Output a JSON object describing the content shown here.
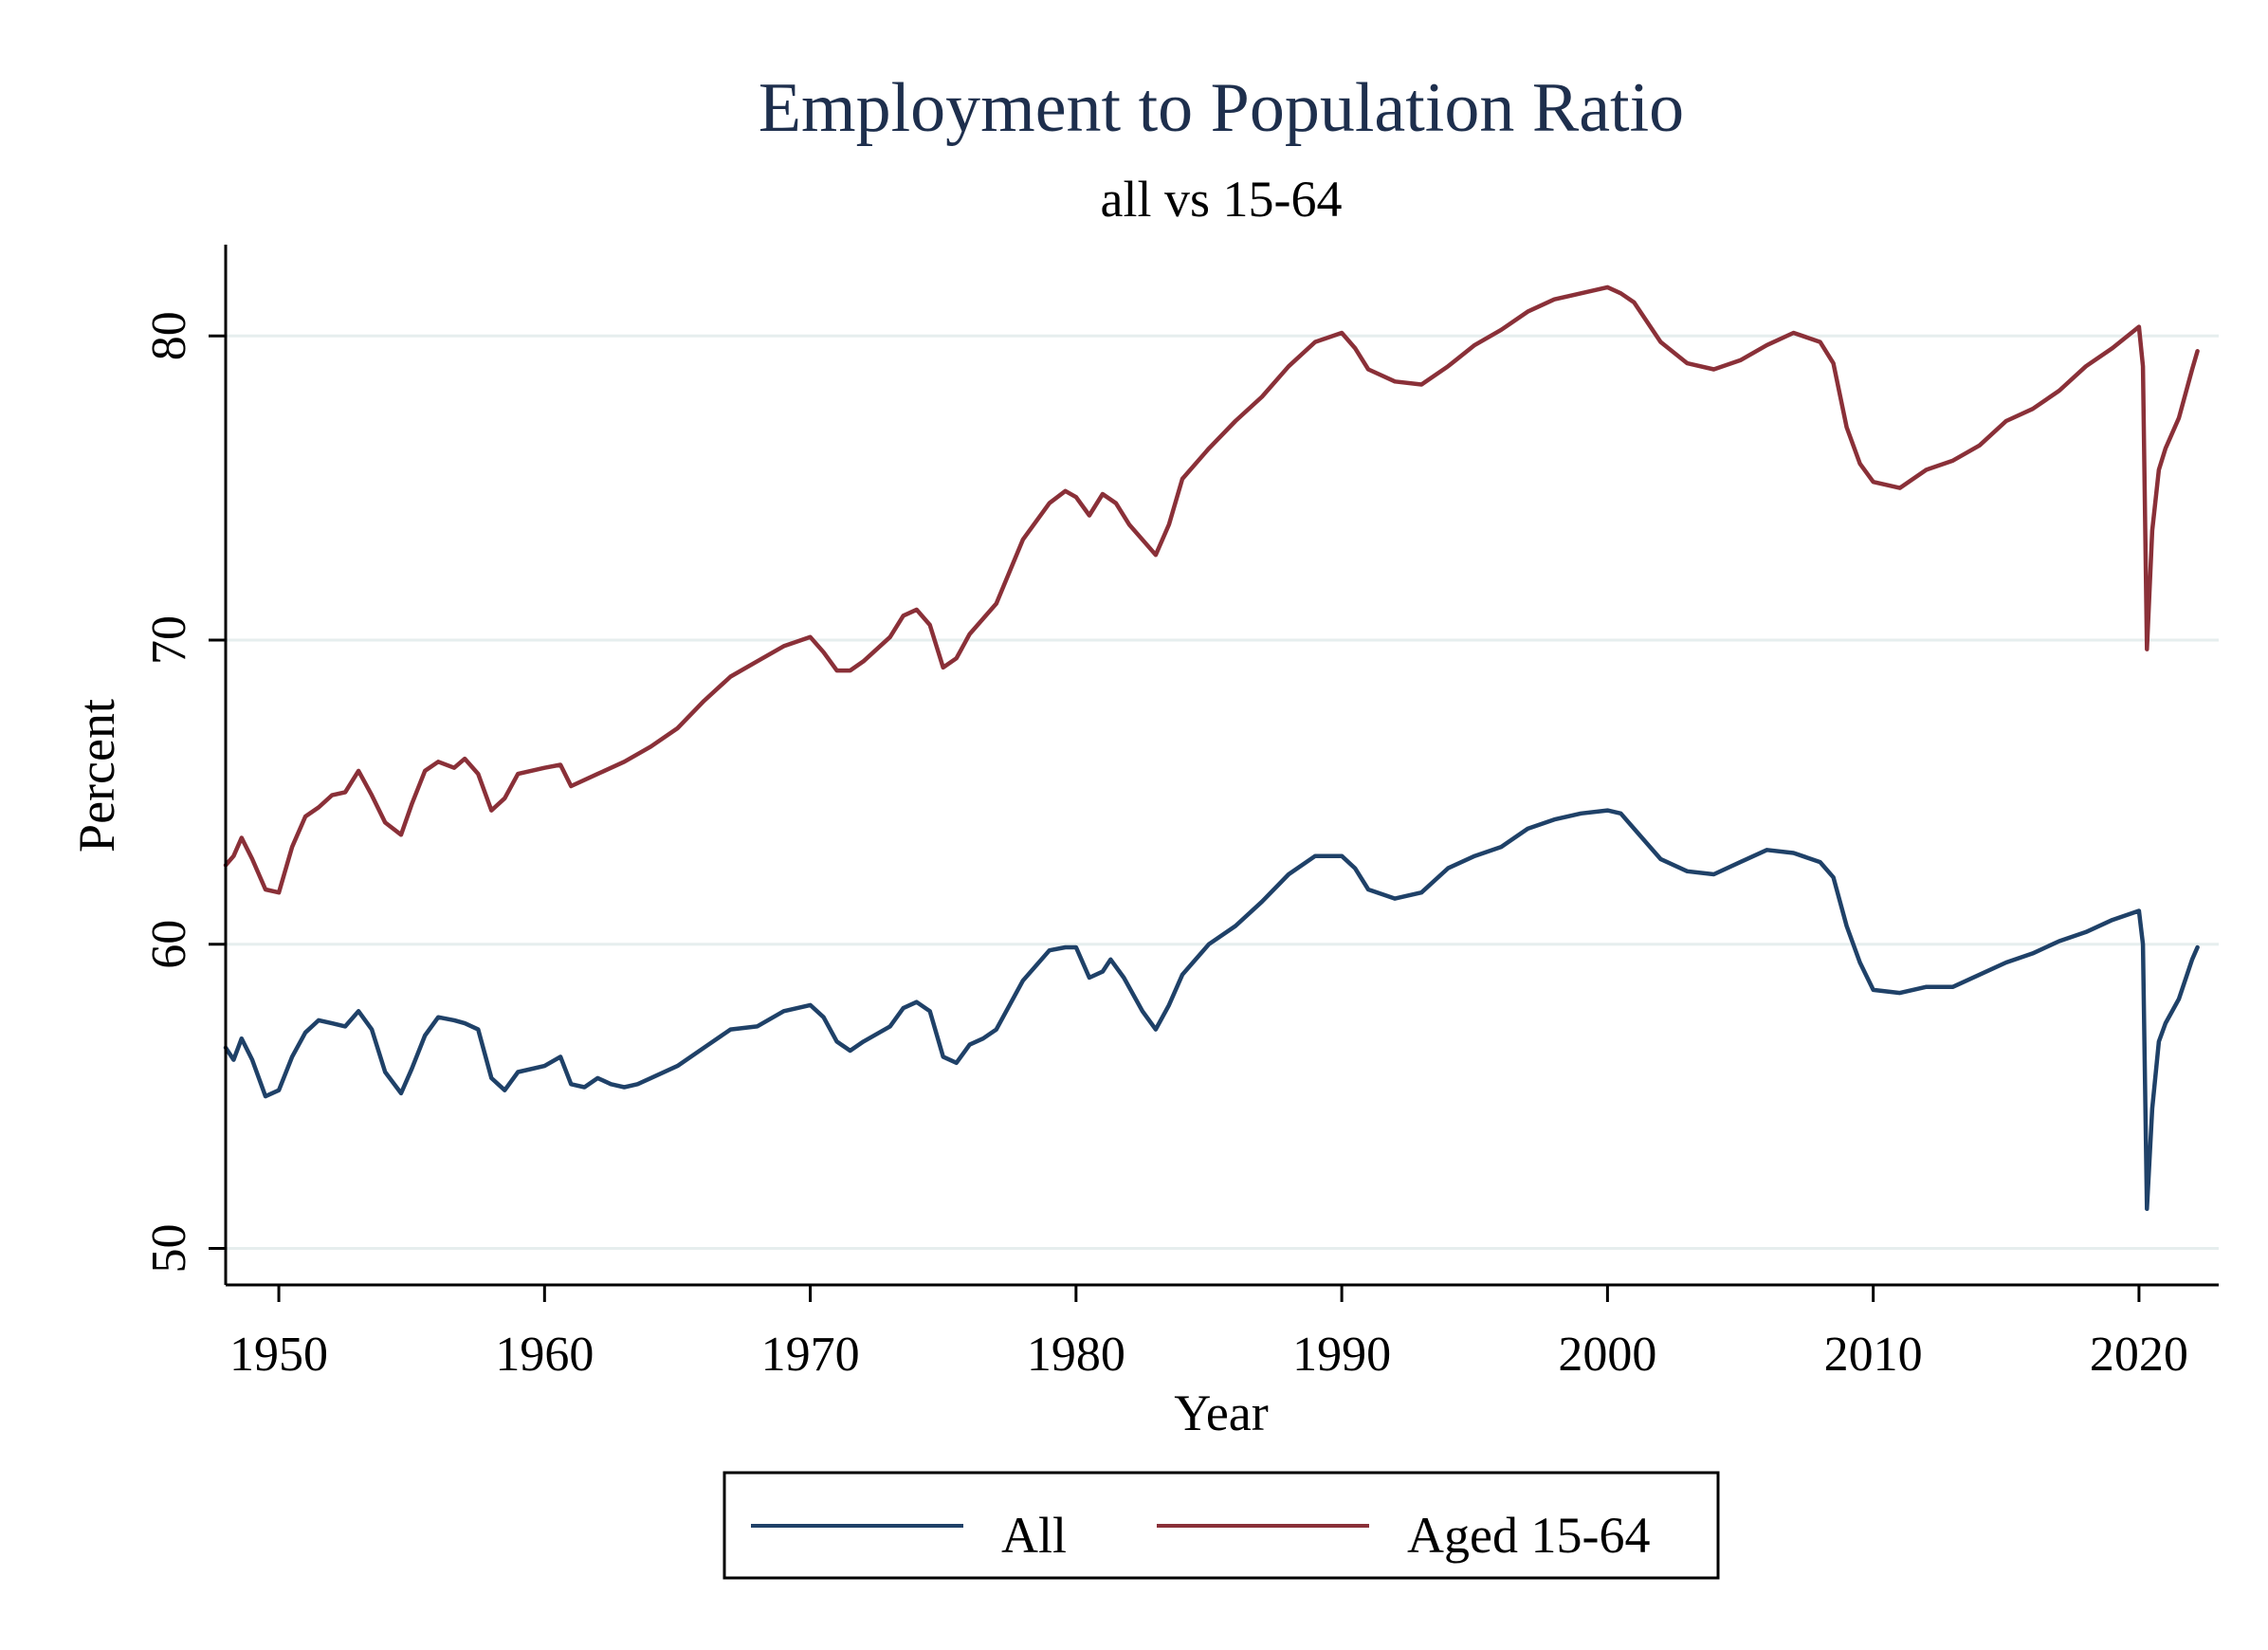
{
  "chart_data": {
    "type": "line",
    "title": "Employment to Population Ratio",
    "subtitle": "all vs 15-64",
    "xlabel": "Year",
    "ylabel": "Percent",
    "xlim": [
      1948,
      2023
    ],
    "ylim": [
      48.8,
      83.0
    ],
    "xticks": [
      1950,
      1960,
      1970,
      1980,
      1990,
      2000,
      2010,
      2020
    ],
    "yticks": [
      50,
      60,
      70,
      80
    ],
    "grid": true,
    "legend_position": "bottom",
    "series": [
      {
        "name": "All",
        "color": "#1f4168",
        "points": [
          [
            1948.0,
            56.6
          ],
          [
            1948.3,
            56.2
          ],
          [
            1948.6,
            56.9
          ],
          [
            1949.0,
            56.2
          ],
          [
            1949.5,
            55.0
          ],
          [
            1950.0,
            55.2
          ],
          [
            1950.5,
            56.3
          ],
          [
            1951.0,
            57.1
          ],
          [
            1951.5,
            57.5
          ],
          [
            1952.0,
            57.4
          ],
          [
            1952.5,
            57.3
          ],
          [
            1953.0,
            57.8
          ],
          [
            1953.5,
            57.2
          ],
          [
            1954.0,
            55.8
          ],
          [
            1954.6,
            55.1
          ],
          [
            1955.0,
            55.9
          ],
          [
            1955.5,
            57.0
          ],
          [
            1956.0,
            57.6
          ],
          [
            1956.6,
            57.5
          ],
          [
            1957.0,
            57.4
          ],
          [
            1957.5,
            57.2
          ],
          [
            1958.0,
            55.6
          ],
          [
            1958.5,
            55.2
          ],
          [
            1959.0,
            55.8
          ],
          [
            1960.0,
            56.0
          ],
          [
            1960.6,
            56.3
          ],
          [
            1961.0,
            55.4
          ],
          [
            1961.5,
            55.3
          ],
          [
            1962.0,
            55.6
          ],
          [
            1962.5,
            55.4
          ],
          [
            1963.0,
            55.3
          ],
          [
            1963.5,
            55.4
          ],
          [
            1964.0,
            55.6
          ],
          [
            1965.0,
            56.0
          ],
          [
            1966.0,
            56.6
          ],
          [
            1967.0,
            57.2
          ],
          [
            1968.0,
            57.3
          ],
          [
            1969.0,
            57.8
          ],
          [
            1970.0,
            58.0
          ],
          [
            1970.5,
            57.6
          ],
          [
            1971.0,
            56.8
          ],
          [
            1971.5,
            56.5
          ],
          [
            1972.0,
            56.8
          ],
          [
            1973.0,
            57.3
          ],
          [
            1973.5,
            57.9
          ],
          [
            1974.0,
            58.1
          ],
          [
            1974.5,
            57.8
          ],
          [
            1975.0,
            56.3
          ],
          [
            1975.5,
            56.1
          ],
          [
            1976.0,
            56.7
          ],
          [
            1976.5,
            56.9
          ],
          [
            1977.0,
            57.2
          ],
          [
            1978.0,
            58.8
          ],
          [
            1979.0,
            59.8
          ],
          [
            1979.6,
            59.9
          ],
          [
            1980.0,
            59.9
          ],
          [
            1980.5,
            58.9
          ],
          [
            1981.0,
            59.1
          ],
          [
            1981.3,
            59.5
          ],
          [
            1981.8,
            58.9
          ],
          [
            1982.5,
            57.8
          ],
          [
            1983.0,
            57.2
          ],
          [
            1983.5,
            58.0
          ],
          [
            1984.0,
            59.0
          ],
          [
            1985.0,
            60.0
          ],
          [
            1986.0,
            60.6
          ],
          [
            1987.0,
            61.4
          ],
          [
            1988.0,
            62.3
          ],
          [
            1989.0,
            62.9
          ],
          [
            1990.0,
            62.9
          ],
          [
            1990.5,
            62.5
          ],
          [
            1991.0,
            61.8
          ],
          [
            1992.0,
            61.5
          ],
          [
            1993.0,
            61.7
          ],
          [
            1994.0,
            62.5
          ],
          [
            1995.0,
            62.9
          ],
          [
            1996.0,
            63.2
          ],
          [
            1997.0,
            63.8
          ],
          [
            1998.0,
            64.1
          ],
          [
            1999.0,
            64.3
          ],
          [
            2000.0,
            64.4
          ],
          [
            2000.5,
            64.3
          ],
          [
            2001.0,
            63.8
          ],
          [
            2002.0,
            62.8
          ],
          [
            2003.0,
            62.4
          ],
          [
            2004.0,
            62.3
          ],
          [
            2005.0,
            62.7
          ],
          [
            2006.0,
            63.1
          ],
          [
            2007.0,
            63.0
          ],
          [
            2008.0,
            62.7
          ],
          [
            2008.5,
            62.2
          ],
          [
            2009.0,
            60.6
          ],
          [
            2009.5,
            59.4
          ],
          [
            2010.0,
            58.5
          ],
          [
            2011.0,
            58.4
          ],
          [
            2012.0,
            58.6
          ],
          [
            2013.0,
            58.6
          ],
          [
            2014.0,
            59.0
          ],
          [
            2015.0,
            59.4
          ],
          [
            2016.0,
            59.7
          ],
          [
            2017.0,
            60.1
          ],
          [
            2018.0,
            60.4
          ],
          [
            2019.0,
            60.8
          ],
          [
            2020.0,
            61.1
          ],
          [
            2020.15,
            60.0
          ],
          [
            2020.3,
            51.3
          ],
          [
            2020.5,
            54.6
          ],
          [
            2020.75,
            56.8
          ],
          [
            2021.0,
            57.4
          ],
          [
            2021.5,
            58.2
          ],
          [
            2022.0,
            59.5
          ],
          [
            2022.2,
            59.9
          ]
        ]
      },
      {
        "name": "Aged 15-64",
        "color": "#8a3038",
        "points": [
          [
            1948.0,
            62.6
          ],
          [
            1948.3,
            62.9
          ],
          [
            1948.6,
            63.5
          ],
          [
            1949.0,
            62.8
          ],
          [
            1949.5,
            61.8
          ],
          [
            1950.0,
            61.7
          ],
          [
            1950.5,
            63.2
          ],
          [
            1951.0,
            64.2
          ],
          [
            1951.5,
            64.5
          ],
          [
            1952.0,
            64.9
          ],
          [
            1952.5,
            65.0
          ],
          [
            1953.0,
            65.7
          ],
          [
            1953.5,
            64.9
          ],
          [
            1954.0,
            64.0
          ],
          [
            1954.6,
            63.6
          ],
          [
            1955.0,
            64.6
          ],
          [
            1955.5,
            65.7
          ],
          [
            1956.0,
            66.0
          ],
          [
            1956.6,
            65.8
          ],
          [
            1957.0,
            66.1
          ],
          [
            1957.5,
            65.6
          ],
          [
            1958.0,
            64.4
          ],
          [
            1958.5,
            64.8
          ],
          [
            1959.0,
            65.6
          ],
          [
            1960.0,
            65.8
          ],
          [
            1960.6,
            65.9
          ],
          [
            1961.0,
            65.2
          ],
          [
            1962.0,
            65.6
          ],
          [
            1963.0,
            66.0
          ],
          [
            1964.0,
            66.5
          ],
          [
            1965.0,
            67.1
          ],
          [
            1966.0,
            68.0
          ],
          [
            1967.0,
            68.8
          ],
          [
            1968.0,
            69.3
          ],
          [
            1969.0,
            69.8
          ],
          [
            1970.0,
            70.1
          ],
          [
            1970.5,
            69.6
          ],
          [
            1971.0,
            69.0
          ],
          [
            1971.5,
            69.0
          ],
          [
            1972.0,
            69.3
          ],
          [
            1973.0,
            70.1
          ],
          [
            1973.5,
            70.8
          ],
          [
            1974.0,
            71.0
          ],
          [
            1974.5,
            70.5
          ],
          [
            1975.0,
            69.1
          ],
          [
            1975.5,
            69.4
          ],
          [
            1976.0,
            70.2
          ],
          [
            1977.0,
            71.2
          ],
          [
            1978.0,
            73.3
          ],
          [
            1979.0,
            74.5
          ],
          [
            1979.6,
            74.9
          ],
          [
            1980.0,
            74.7
          ],
          [
            1980.5,
            74.1
          ],
          [
            1981.0,
            74.8
          ],
          [
            1981.5,
            74.5
          ],
          [
            1982.0,
            73.8
          ],
          [
            1982.6,
            73.2
          ],
          [
            1983.0,
            72.8
          ],
          [
            1983.5,
            73.8
          ],
          [
            1984.0,
            75.3
          ],
          [
            1985.0,
            76.3
          ],
          [
            1986.0,
            77.2
          ],
          [
            1987.0,
            78.0
          ],
          [
            1988.0,
            79.0
          ],
          [
            1989.0,
            79.8
          ],
          [
            1990.0,
            80.1
          ],
          [
            1990.5,
            79.6
          ],
          [
            1991.0,
            78.9
          ],
          [
            1992.0,
            78.5
          ],
          [
            1993.0,
            78.4
          ],
          [
            1994.0,
            79.0
          ],
          [
            1995.0,
            79.7
          ],
          [
            1996.0,
            80.2
          ],
          [
            1997.0,
            80.8
          ],
          [
            1998.0,
            81.2
          ],
          [
            1999.0,
            81.4
          ],
          [
            2000.0,
            81.6
          ],
          [
            2000.5,
            81.4
          ],
          [
            2001.0,
            81.1
          ],
          [
            2002.0,
            79.8
          ],
          [
            2003.0,
            79.1
          ],
          [
            2004.0,
            78.9
          ],
          [
            2005.0,
            79.2
          ],
          [
            2006.0,
            79.7
          ],
          [
            2007.0,
            80.1
          ],
          [
            2008.0,
            79.8
          ],
          [
            2008.5,
            79.1
          ],
          [
            2009.0,
            77.0
          ],
          [
            2009.5,
            75.8
          ],
          [
            2010.0,
            75.2
          ],
          [
            2011.0,
            75.0
          ],
          [
            2012.0,
            75.6
          ],
          [
            2013.0,
            75.9
          ],
          [
            2014.0,
            76.4
          ],
          [
            2015.0,
            77.2
          ],
          [
            2016.0,
            77.6
          ],
          [
            2017.0,
            78.2
          ],
          [
            2018.0,
            79.0
          ],
          [
            2019.0,
            79.6
          ],
          [
            2020.0,
            80.3
          ],
          [
            2020.15,
            79.0
          ],
          [
            2020.3,
            69.7
          ],
          [
            2020.5,
            73.6
          ],
          [
            2020.75,
            75.6
          ],
          [
            2021.0,
            76.3
          ],
          [
            2021.5,
            77.3
          ],
          [
            2022.0,
            78.9
          ],
          [
            2022.2,
            79.5
          ]
        ]
      }
    ]
  }
}
